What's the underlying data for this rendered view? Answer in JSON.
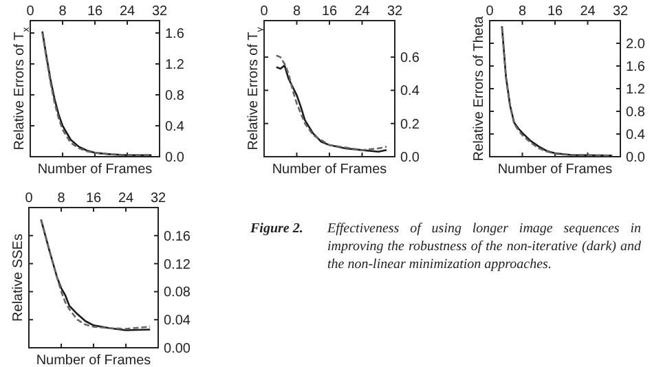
{
  "chart_data": [
    {
      "type": "line",
      "xlabel": "Number of Frames",
      "ylabel": "Relative Errors of T$_{x}$",
      "xlim": [
        0,
        32
      ],
      "xticks": [
        0,
        8,
        16,
        24,
        32
      ],
      "ylim": [
        0,
        1.76
      ],
      "yticks": [
        {
          "value": 0,
          "label": "0.0"
        },
        0.4,
        0.8,
        1.2,
        1.6
      ],
      "grid": false,
      "series": [
        {
          "color": "#1a1a1a",
          "line_style": "solid",
          "x": [
            3,
            4,
            5,
            6,
            7,
            8,
            10,
            12,
            14,
            16,
            20,
            24,
            30
          ],
          "values": [
            1.62,
            1.3,
            1.0,
            0.75,
            0.55,
            0.4,
            0.22,
            0.13,
            0.08,
            0.05,
            0.03,
            0.02,
            0.02
          ]
        },
        {
          "color": "#666666",
          "line_style": "dashed",
          "x": [
            3,
            4,
            5,
            6,
            7,
            8,
            10,
            12,
            14,
            16,
            20,
            24,
            30
          ],
          "values": [
            1.6,
            1.27,
            0.96,
            0.7,
            0.5,
            0.35,
            0.18,
            0.11,
            0.07,
            0.05,
            0.03,
            0.02,
            0.02
          ]
        }
      ]
    },
    {
      "type": "line",
      "xlabel": "Number of Frames",
      "ylabel": "Relative Errors of T$_{y}$",
      "xlim": [
        0,
        32
      ],
      "xticks": [
        0,
        8,
        16,
        24,
        32
      ],
      "ylim": [
        0,
        0.82
      ],
      "yticks": [
        {
          "value": 0,
          "label": "0.0"
        },
        0.2,
        0.4,
        0.6
      ],
      "grid": false,
      "series": [
        {
          "color": "#1a1a1a",
          "line_style": "solid",
          "x": [
            3,
            4,
            5,
            6,
            7,
            8,
            9,
            10,
            12,
            14,
            16,
            20,
            24,
            28,
            30
          ],
          "values": [
            0.54,
            0.53,
            0.55,
            0.47,
            0.42,
            0.37,
            0.3,
            0.22,
            0.14,
            0.09,
            0.07,
            0.05,
            0.04,
            0.03,
            0.04
          ]
        },
        {
          "color": "#666666",
          "line_style": "dashed",
          "x": [
            3,
            4,
            5,
            6,
            7,
            8,
            9,
            10,
            12,
            16,
            24,
            28,
            30
          ],
          "values": [
            0.61,
            0.6,
            0.56,
            0.5,
            0.4,
            0.32,
            0.26,
            0.2,
            0.13,
            0.07,
            0.04,
            0.05,
            0.06
          ]
        }
      ]
    },
    {
      "type": "line",
      "xlabel": "Number of Frames",
      "ylabel": "Relative Errors of Theta",
      "xlim": [
        0,
        32
      ],
      "xticks": [
        0,
        8,
        16,
        24,
        32
      ],
      "ylim": [
        0,
        2.4
      ],
      "yticks": [
        {
          "value": 0,
          "label": "0.0"
        },
        0.4,
        0.8,
        1.2,
        1.6,
        {
          "value": 2,
          "label": "2.0"
        }
      ],
      "grid": false,
      "series": [
        {
          "color": "#1a1a1a",
          "line_style": "solid",
          "x": [
            3,
            4,
            5,
            6,
            7,
            8,
            10,
            12,
            14,
            16,
            20,
            30
          ],
          "values": [
            2.3,
            1.4,
            0.9,
            0.6,
            0.5,
            0.42,
            0.28,
            0.18,
            0.1,
            0.06,
            0.03,
            0.02
          ]
        },
        {
          "color": "#666666",
          "line_style": "dashed",
          "x": [
            3,
            4,
            5,
            6,
            7,
            8,
            10,
            12,
            14,
            16,
            20,
            30
          ],
          "values": [
            2.28,
            1.38,
            0.88,
            0.58,
            0.47,
            0.38,
            0.25,
            0.15,
            0.09,
            0.05,
            0.03,
            0.02
          ]
        }
      ]
    },
    {
      "type": "line",
      "xlabel": "Number of Frames",
      "ylabel": "Relative SSEs",
      "xlim": [
        0,
        32
      ],
      "xticks": [
        0,
        8,
        16,
        24,
        32
      ],
      "ylim": [
        0,
        0.2
      ],
      "yticks": [
        {
          "value": 0,
          "label": "0.00"
        },
        {
          "value": 0.04,
          "label": "0.04"
        },
        {
          "value": 0.08,
          "label": "0.08"
        },
        {
          "value": 0.12,
          "label": "0.12"
        },
        {
          "value": 0.16,
          "label": "0.16"
        }
      ],
      "grid": false,
      "series": [
        {
          "color": "#1a1a1a",
          "line_style": "solid",
          "x": [
            3,
            5,
            6,
            7,
            8,
            9,
            10,
            12,
            14,
            16,
            20,
            24,
            30
          ],
          "values": [
            0.183,
            0.14,
            0.12,
            0.1,
            0.085,
            0.075,
            0.06,
            0.048,
            0.038,
            0.032,
            0.028,
            0.025,
            0.026
          ]
        },
        {
          "color": "#666666",
          "line_style": "dashed",
          "x": [
            3,
            6,
            8,
            9,
            10,
            12,
            14,
            16,
            20,
            24,
            30
          ],
          "values": [
            0.183,
            0.12,
            0.08,
            0.065,
            0.055,
            0.04,
            0.033,
            0.03,
            0.028,
            0.027,
            0.03
          ]
        }
      ]
    },
    {
      "type": "other",
      "title": "Figure 2.",
      "annotations": [
        "Effectiveness of using longer image sequences in improving the robustness of the non-iterative (dark) and the non-linear minimization approaches."
      ]
    }
  ]
}
